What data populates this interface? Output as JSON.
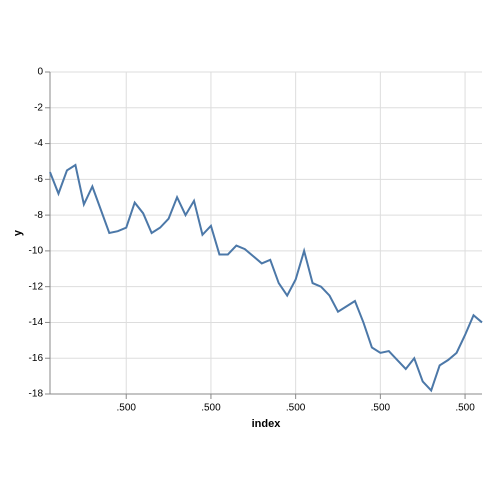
{
  "chart_data": {
    "type": "line",
    "x_label": "index",
    "y_label": "y",
    "x": [
      1,
      2,
      3,
      4,
      5,
      6,
      7,
      8,
      9,
      10,
      11,
      12,
      13,
      14,
      15,
      16,
      17,
      18,
      19,
      20,
      21,
      22,
      23,
      24,
      25,
      26,
      27,
      28,
      29,
      30,
      31,
      32,
      33,
      34,
      35,
      36,
      37,
      38,
      39,
      40,
      41,
      42,
      43,
      44,
      45,
      46,
      47,
      48,
      49,
      50,
      51,
      52
    ],
    "series": [
      {
        "name": "y",
        "color": "#4c78a8",
        "values": [
          -5.6,
          -6.8,
          -5.5,
          -5.2,
          -7.4,
          -6.4,
          -7.7,
          -9.0,
          -8.9,
          -8.7,
          -7.3,
          -7.9,
          -9.0,
          -8.7,
          -8.2,
          -7.0,
          -8.0,
          -7.2,
          -9.1,
          -8.6,
          -10.2,
          -10.2,
          -9.7,
          -9.9,
          -10.3,
          -10.7,
          -10.5,
          -11.8,
          -12.5,
          -11.6,
          -10.0,
          -11.8,
          -12.0,
          -12.5,
          -13.4,
          -13.1,
          -12.8,
          -14.0,
          -15.4,
          -15.7,
          -15.6,
          -16.1,
          -16.6,
          -16.0,
          -17.3,
          -17.8,
          -16.4,
          -16.1,
          -15.7,
          -14.7,
          -13.6,
          -14.0
        ]
      }
    ],
    "xlim": [
      1,
      52
    ],
    "xticks": [
      {
        "value": 10,
        "label": ".500"
      },
      {
        "value": 20,
        "label": ".500"
      },
      {
        "value": 30,
        "label": ".500"
      },
      {
        "value": 40,
        "label": ".500"
      },
      {
        "value": 50,
        "label": ".500"
      }
    ],
    "ylim": [
      -18,
      0
    ],
    "yticks": [
      0,
      -2,
      -4,
      -6,
      -8,
      -10,
      -12,
      -14,
      -16,
      -18
    ],
    "grid": true
  }
}
